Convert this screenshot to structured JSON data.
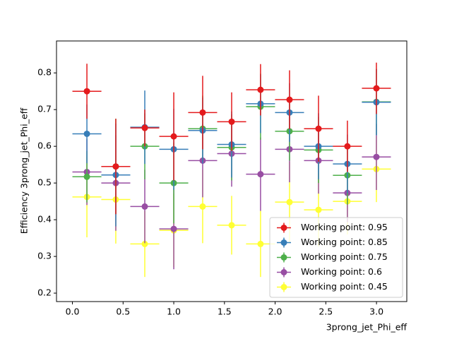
{
  "chart_data": {
    "type": "errorbar",
    "x_label": "3prong_jet_Phi_eff",
    "y_label": "Efficiency 3prong_jet_Phi_eff",
    "x": [
      0.143,
      0.428,
      0.714,
      1.0,
      1.285,
      1.571,
      1.856,
      2.142,
      2.428,
      2.713,
      2.999
    ],
    "xerr": 0.143,
    "series": [
      {
        "name": "Working point: 0.95",
        "color": "#e41a1c",
        "values": [
          0.75,
          0.545,
          0.65,
          0.627,
          0.692,
          0.667,
          0.754,
          0.727,
          0.648,
          0.6,
          0.758
        ],
        "yerr": [
          0.075,
          0.13,
          0.05,
          0.12,
          0.1,
          0.08,
          0.07,
          0.08,
          0.09,
          0.07,
          0.07
        ]
      },
      {
        "name": "Working point: 0.85",
        "color": "#377eb8",
        "values": [
          0.634,
          0.522,
          0.652,
          0.592,
          0.643,
          0.605,
          0.716,
          0.692,
          0.6,
          0.552,
          0.72
        ],
        "yerr": [
          0.08,
          0.14,
          0.1,
          0.11,
          0.09,
          0.09,
          0.08,
          0.08,
          0.09,
          0.08,
          0.09
        ]
      },
      {
        "name": "Working point: 0.75",
        "color": "#4daf4a",
        "values": [
          0.517,
          0.545,
          0.6,
          0.5,
          0.648,
          0.597,
          0.708,
          0.641,
          0.59,
          0.521,
          0.721
        ],
        "yerr": [
          0.07,
          0.13,
          0.09,
          0.11,
          0.09,
          0.09,
          0.09,
          0.08,
          0.09,
          0.08,
          0.09
        ]
      },
      {
        "name": "Working point: 0.6",
        "color": "#984ea3",
        "values": [
          0.53,
          0.5,
          0.436,
          0.375,
          0.561,
          0.58,
          0.524,
          0.592,
          0.561,
          0.473,
          0.571
        ],
        "yerr": [
          0.09,
          0.13,
          0.1,
          0.11,
          0.1,
          0.09,
          0.1,
          0.09,
          0.09,
          0.08,
          0.09
        ]
      },
      {
        "name": "Working point: 0.45",
        "color": "#ffff33",
        "values": [
          0.462,
          0.455,
          0.334,
          0.371,
          0.436,
          0.385,
          0.334,
          0.448,
          0.427,
          0.45,
          0.538
        ],
        "yerr": [
          0.11,
          0.12,
          0.09,
          0.1,
          0.1,
          0.08,
          0.09,
          0.11,
          0.1,
          0.09,
          0.09
        ]
      }
    ],
    "xlim": [
      -0.157,
      3.299
    ],
    "ylim": [
      0.177,
      0.887
    ],
    "xticks": [
      {
        "value": 0,
        "label": "0.0"
      },
      0.5,
      {
        "value": 1,
        "label": "1.0"
      },
      1.5,
      {
        "value": 2,
        "label": "2.0"
      },
      2.5,
      {
        "value": 3,
        "label": "3.0"
      }
    ],
    "yticks": [
      0.2,
      0.3,
      0.4,
      0.5,
      0.6,
      0.7,
      0.8
    ],
    "legend": "lower right"
  }
}
